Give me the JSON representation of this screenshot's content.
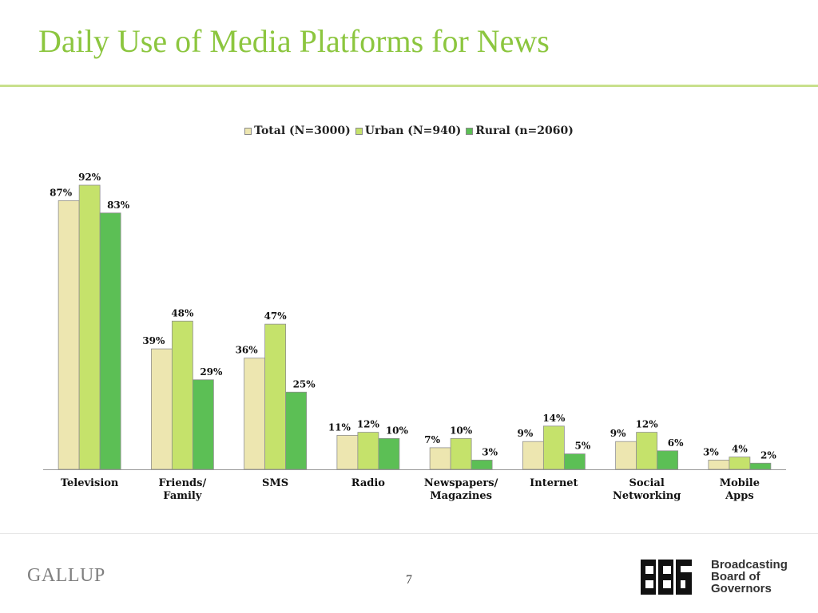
{
  "slide": {
    "title": "Daily Use of Media Platforms for News",
    "page_number": "7"
  },
  "logos": {
    "left": "GALLUP",
    "right_mark": "BBG",
    "right_lines": [
      "Broadcasting",
      "Board of",
      "Governors"
    ]
  },
  "colors": {
    "title": "#8cc63f",
    "total": "#ede6b0",
    "urban": "#c5e26b",
    "rural": "#5cbf55"
  },
  "chart_data": {
    "type": "bar",
    "title": "",
    "xlabel": "",
    "ylabel": "",
    "ylim": [
      0,
      100
    ],
    "grid": false,
    "legend_position": "top-center",
    "categories": [
      [
        "Television"
      ],
      [
        "Friends/",
        "Family"
      ],
      [
        "SMS"
      ],
      [
        "Radio"
      ],
      [
        "Newspapers/",
        "Magazines"
      ],
      [
        "Internet"
      ],
      [
        "Social",
        "Networking"
      ],
      [
        "Mobile",
        "Apps"
      ]
    ],
    "series": [
      {
        "name": "Total (N=3000)",
        "color": "#ede6b0",
        "values": [
          87,
          39,
          36,
          11,
          7,
          9,
          9,
          3
        ]
      },
      {
        "name": "Urban (N=940)",
        "color": "#c5e26b",
        "values": [
          92,
          48,
          47,
          12,
          10,
          14,
          12,
          4
        ]
      },
      {
        "name": "Rural (n=2060)",
        "color": "#5cbf55",
        "values": [
          83,
          29,
          25,
          10,
          3,
          5,
          6,
          2
        ]
      }
    ],
    "value_suffix": "%"
  }
}
